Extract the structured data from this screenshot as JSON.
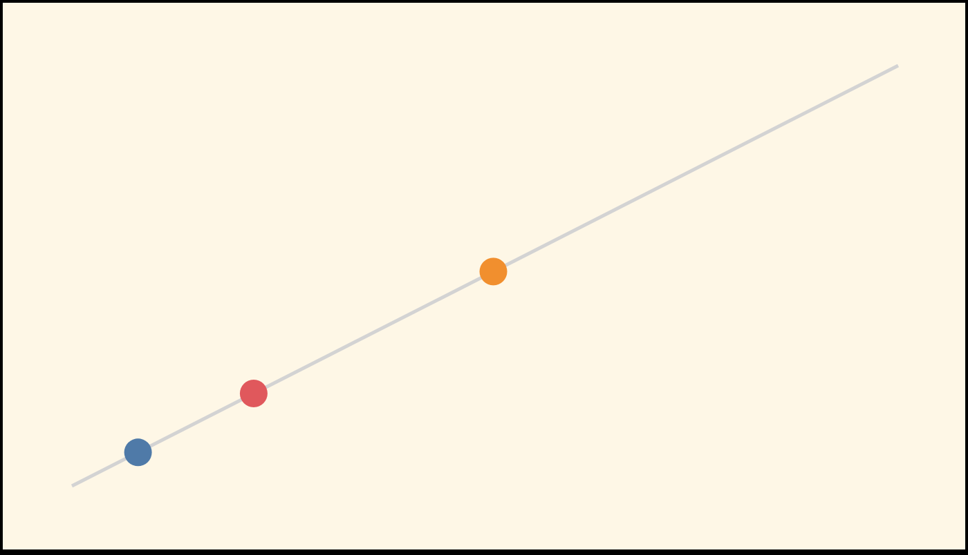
{
  "colors": {
    "background": "#fef7e6",
    "frame": "#000000",
    "line": "#d3d3d3",
    "point_blue": "#4f7aa8",
    "point_red": "#e0585c",
    "point_orange": "#f18f2e"
  },
  "diagram": {
    "line": {
      "color": "#d3d3d3"
    },
    "points": [
      {
        "id": "blue",
        "color": "#4f7aa8",
        "position_along_line": 0.08
      },
      {
        "id": "red",
        "color": "#e0585c",
        "position_along_line": 0.22
      },
      {
        "id": "orange",
        "color": "#f18f2e",
        "position_along_line": 0.51
      }
    ]
  }
}
